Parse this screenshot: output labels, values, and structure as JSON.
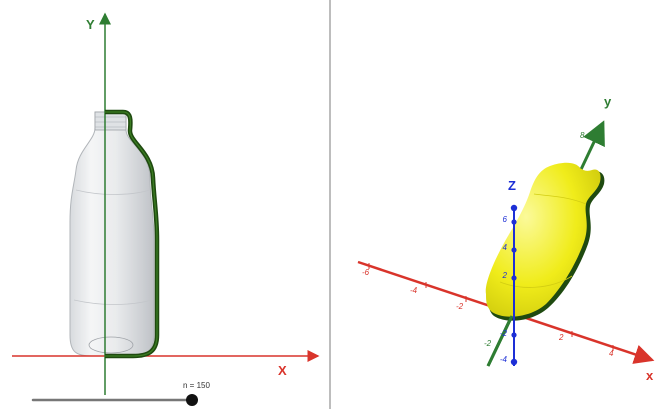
{
  "colors": {
    "x_axis": "#d9342b",
    "y_axis": "#2e7d32",
    "z_axis": "#1d2fd6",
    "surface": "#f2ef1a",
    "profile_curve": "#1f4a10",
    "slider_track": "#777777",
    "slider_knob": "#111111"
  },
  "view2d": {
    "x_label": "X",
    "y_label": "Y",
    "slider": {
      "label": "n = 150",
      "name": "n",
      "value": 150,
      "fraction": 1.0
    }
  },
  "view3d": {
    "x_label": "x",
    "y_label": "y",
    "z_label": "Z",
    "x_ticks": [
      "-6",
      "-4",
      "-2",
      "2",
      "4"
    ],
    "y_ticks": [
      "-2",
      "8"
    ],
    "z_ticks": [
      "6",
      "4",
      "2",
      "-2",
      "-4"
    ]
  }
}
